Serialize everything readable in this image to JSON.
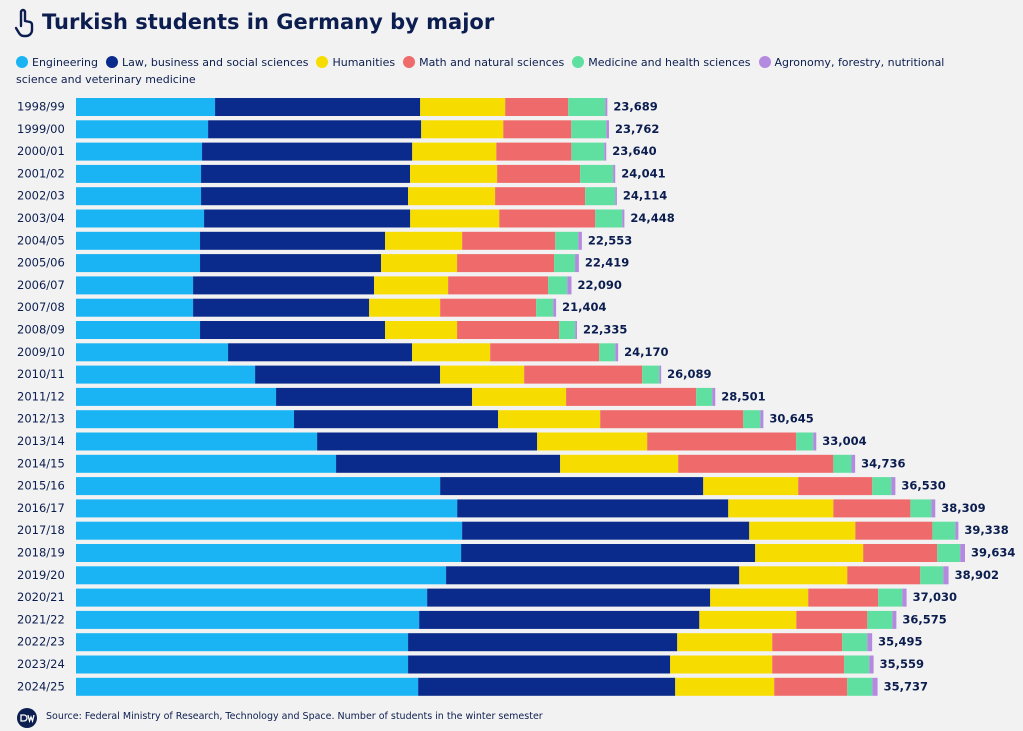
{
  "chart_data": {
    "type": "stacked-bar-horizontal",
    "title": "Turkish students in Germany by major",
    "source": "Source: Federal Ministry of Research, Technology and Space. Number of students in the winter semester",
    "categories": [
      "1998/99",
      "1999/00",
      "2000/01",
      "2001/02",
      "2002/03",
      "2003/04",
      "2004/05",
      "2005/06",
      "2006/07",
      "2007/08",
      "2008/09",
      "2009/10",
      "2010/11",
      "2011/12",
      "2012/13",
      "2013/14",
      "2014/15",
      "2015/16",
      "2016/17",
      "2017/18",
      "2018/19",
      "2019/20",
      "2020/21",
      "2021/22",
      "2022/23",
      "2023/24",
      "2024/25"
    ],
    "series": [
      {
        "name": "Engineering",
        "color": "#1ab4f5",
        "values": [
          6200,
          5890,
          5620,
          5575,
          5575,
          5710,
          5530,
          5530,
          5220,
          5220,
          5530,
          6780,
          7985,
          8920,
          9720,
          10750,
          11595,
          16235,
          16995,
          17215,
          17170,
          16500,
          15655,
          15300,
          14805,
          14805,
          15255
        ]
      },
      {
        "name": "Law, business and social sciences",
        "color": "#0a2a8c",
        "values": [
          9145,
          9500,
          9370,
          9320,
          9230,
          9190,
          8250,
          8070,
          8070,
          7850,
          8250,
          8205,
          8250,
          8740,
          9100,
          9810,
          9990,
          11730,
          12085,
          12800,
          13110,
          13070,
          12620,
          12490,
          12000,
          11685,
          11460
        ]
      },
      {
        "name": "Humanities",
        "color": "#f7dc00",
        "values": [
          3790,
          3660,
          3750,
          3880,
          3880,
          3970,
          3435,
          3390,
          3300,
          3165,
          3210,
          3480,
          3745,
          4190,
          4550,
          4905,
          5265,
          4235,
          4685,
          4730,
          4815,
          4815,
          4370,
          4325,
          4235,
          4550,
          4415
        ]
      },
      {
        "name": "Math and natural sciences",
        "color": "#ef6b6b",
        "values": [
          2810,
          3030,
          3345,
          3700,
          4015,
          4280,
          4150,
          4325,
          4460,
          4280,
          4550,
          4860,
          5265,
          5800,
          6380,
          6645,
          6915,
          3300,
          3435,
          3435,
          3300,
          3255,
          3120,
          3165,
          3120,
          3210,
          3255
        ]
      },
      {
        "name": "Medicine and health sciences",
        "color": "#5fe0a0",
        "values": [
          1650,
          1560,
          1470,
          1470,
          1340,
          1205,
          1025,
          935,
          850,
          760,
          715,
          715,
          760,
          715,
          760,
          760,
          805,
          850,
          935,
          1025,
          1025,
          1025,
          1070,
          1115,
          1115,
          1115,
          1115
        ]
      },
      {
        "name": "Agronomy, forestry, nutritional science and veterinary medicine",
        "color": "#b48ae0",
        "values": [
          94,
          122,
          85,
          96,
          74,
          93,
          163,
          169,
          190,
          129,
          80,
          130,
          84,
          136,
          135,
          134,
          166,
          180,
          174,
          133,
          214,
          237,
          195,
          180,
          220,
          194,
          237
        ]
      }
    ],
    "totals": {
      "values": [
        23689,
        23762,
        23640,
        24041,
        24114,
        24448,
        22553,
        22419,
        22090,
        21404,
        22335,
        24170,
        26089,
        28501,
        30645,
        33004,
        34736,
        36530,
        38309,
        39338,
        39634,
        38902,
        37030,
        36575,
        35495,
        35559,
        35737
      ],
      "value_labels": [
        "23,689",
        "23,762",
        "23,640",
        "24,041",
        "24,114",
        "24,448",
        "22,553",
        "22,419",
        "22,090",
        "21,404",
        "22,335",
        "24,170",
        "26,089",
        "28,501",
        "30,645",
        "33,004",
        "34,736",
        "36,530",
        "38,309",
        "39,338",
        "39,634",
        "38,902",
        "37,030",
        "36,575",
        "35,495",
        "35,559",
        "35,737"
      ]
    }
  }
}
